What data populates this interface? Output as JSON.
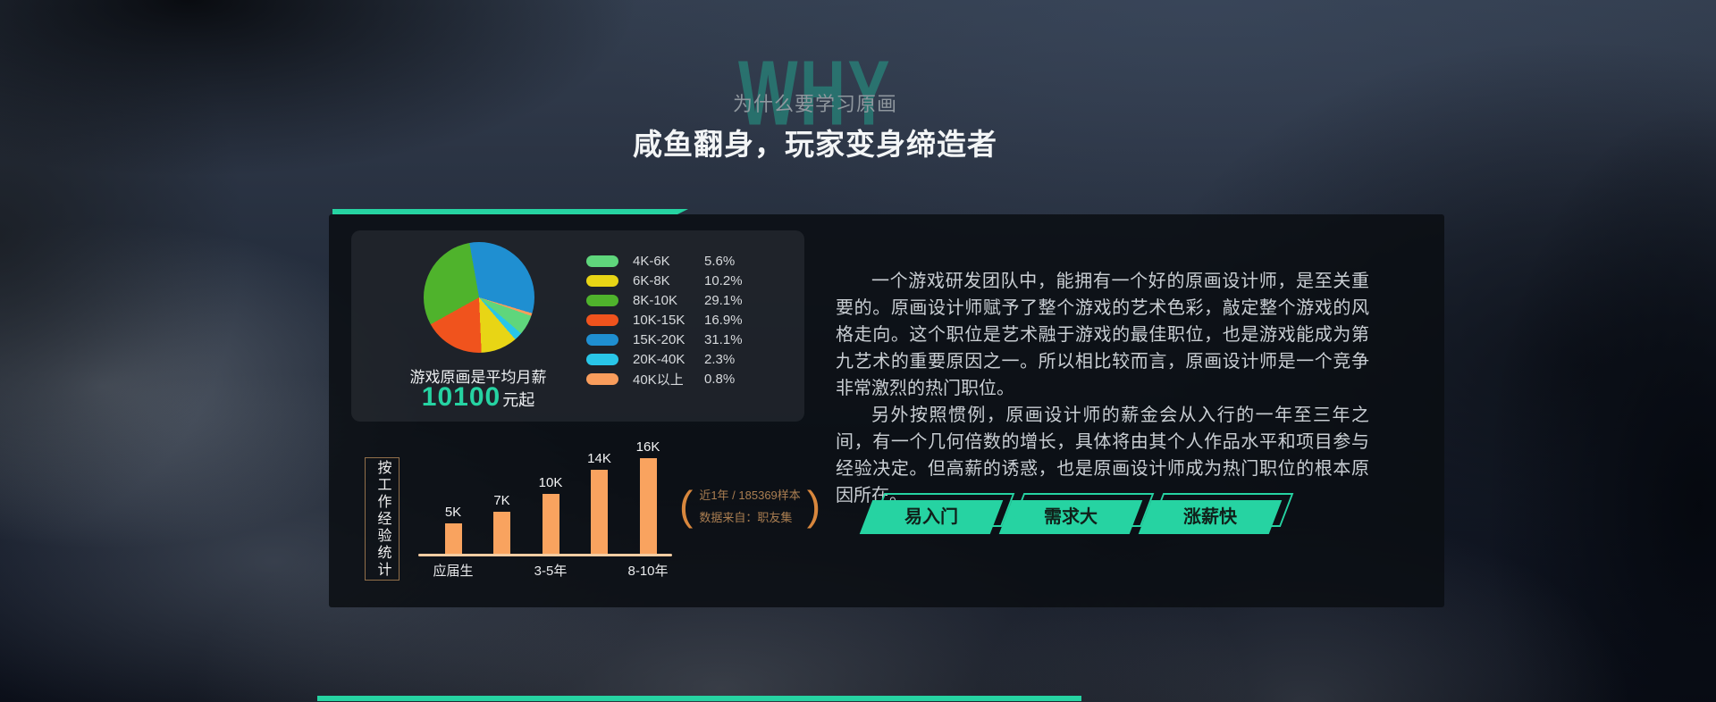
{
  "page": {
    "ghost_title": "WHY",
    "section_subtitle": "为什么要学习原画",
    "section_title": "咸鱼翻身，玩家变身缔造者"
  },
  "salary_card": {
    "caption": "游戏原画是平均月薪",
    "value": "10100",
    "value_suffix": "元起"
  },
  "experience_chart": {
    "side_label": "按工作经验统计",
    "paren_open": "(",
    "paren_close": ")",
    "source_note_line1": "近1年 / 185369样本",
    "source_note_line2": "数据来自：职友集"
  },
  "description": {
    "paragraph1": "一个游戏研发团队中，能拥有一个好的原画设计师，是至关重要的。原画设计师赋予了整个游戏的艺术色彩，敲定整个游戏的风格走向。这个职位是艺术融于游戏的最佳职位，也是游戏能成为第九艺术的重要原因之一。所以相比较而言，原画设计师是一个竞争非常激烈的热门职位。",
    "paragraph2": "另外按照惯例，原画设计师的薪金会从入行的一年至三年之间，有一个几何倍数的增长，具体将由其个人作品水平和项目参与经验决定。但高薪的诱惑，也是原画设计师成为热门职位的根本原因所在。"
  },
  "badges": [
    "易入门",
    "需求大",
    "涨薪快"
  ],
  "colors": {
    "accent_teal": "#26d3a2",
    "bar_orange": "#f9a35f",
    "axis_peach": "#f7cda2",
    "note_orange": "#aa7e51",
    "paren_orange": "#d8873d"
  },
  "chart_data": [
    {
      "type": "pie",
      "title": "游戏原画是平均月薪 10100元起",
      "labels": [
        "4K-6K",
        "6K-8K",
        "8K-10K",
        "10K-15K",
        "15K-20K",
        "20K-40K",
        "40K以上"
      ],
      "values": [
        5.6,
        10.2,
        29.1,
        16.9,
        31.1,
        2.3,
        0.8
      ],
      "unit": "%",
      "colors": [
        "#5fd67c",
        "#e8d515",
        "#4fb32c",
        "#f0531d",
        "#1f8fd1",
        "#29c6e8",
        "#f99d5c"
      ],
      "legend_position": "right",
      "start_angle_deg": -10,
      "draw_order": [
        4,
        6,
        0,
        5,
        1,
        3,
        2
      ]
    },
    {
      "type": "bar",
      "title": "按工作经验统计",
      "categories": [
        "应届生",
        "3-5年",
        "8-10年"
      ],
      "category_bar_positions": [
        0,
        2,
        4
      ],
      "values": [
        5,
        7,
        10,
        14,
        16
      ],
      "bar_labels": [
        "5K",
        "7K",
        "10K",
        "14K",
        "16K"
      ],
      "unit": "K",
      "ylim": [
        0,
        16
      ],
      "bar_color": "#f9a35f",
      "source": "近1年 / 185369样本 数据来自：职友集"
    }
  ]
}
